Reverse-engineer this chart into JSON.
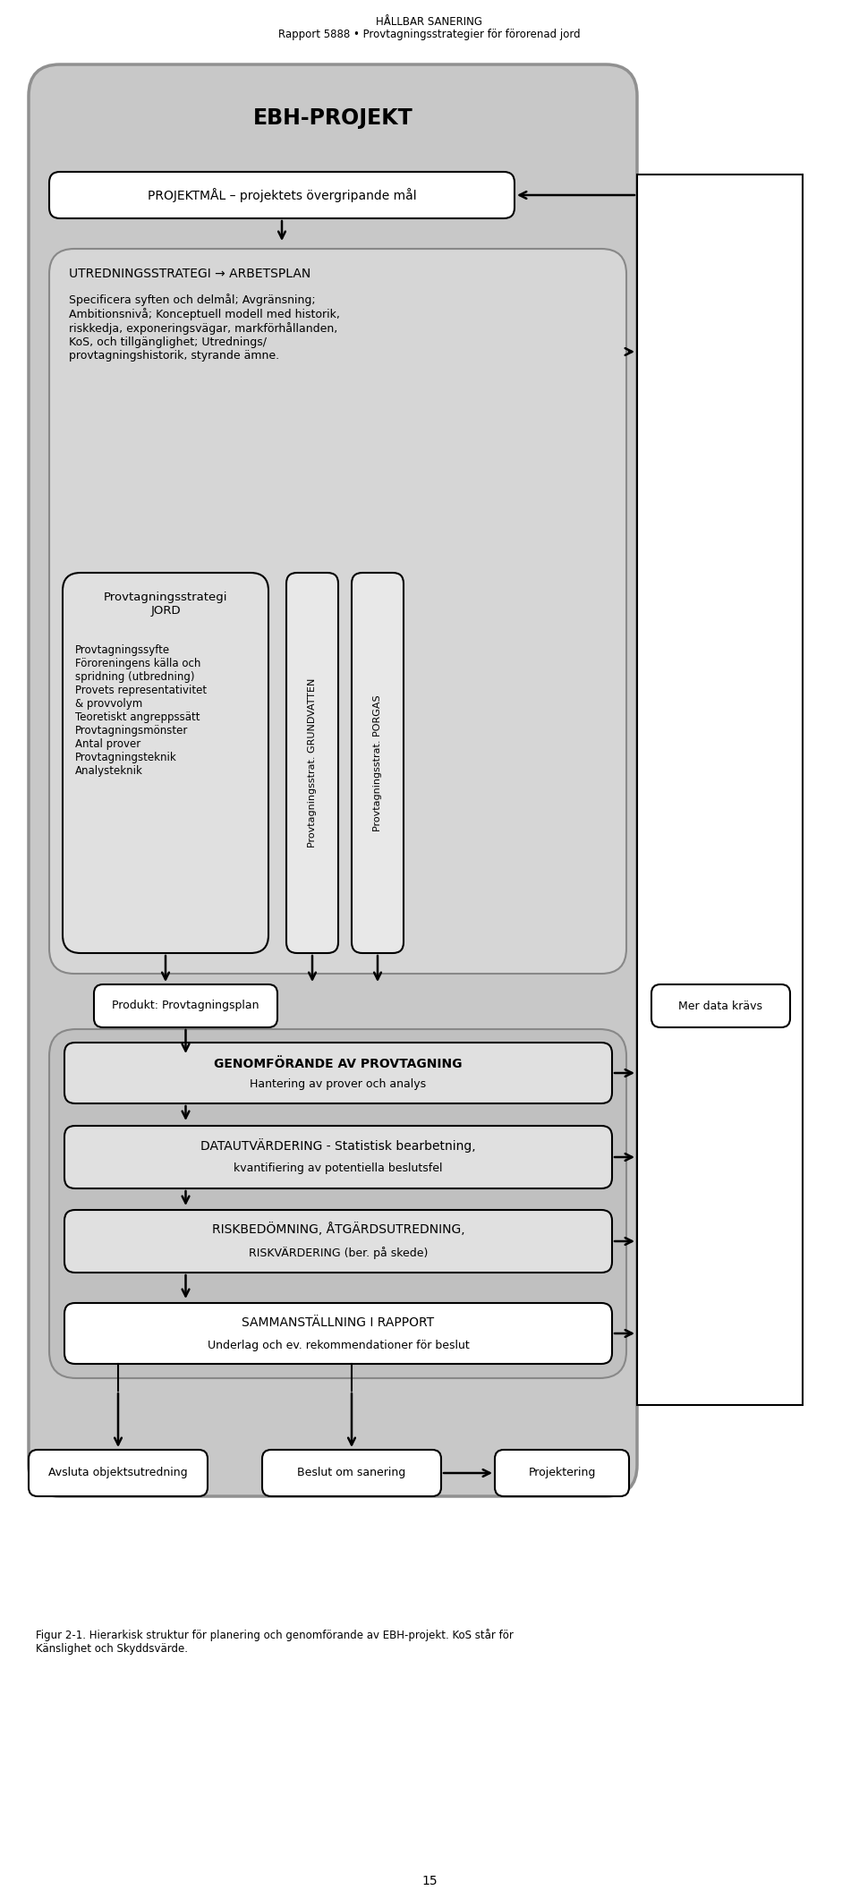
{
  "title_line1": "HÅLLBAR SANERING",
  "title_line2": "Rapport 5888 • Provtagningsstrategier för förorenad jord",
  "page_number": "15",
  "footer_line1": "Figur 2-1. Hierarkisk struktur för planering och genomförande av EBH-projekt. KoS står för",
  "footer_line2": "Känslighet och Skyddsvärde.",
  "main_title": "EBH-PROJEKT",
  "box1_text": "PROJEKTMÅL – projektets övergripande mål",
  "box2_title": "UTREDNINGSSTRATEGI → ARBETSPLAN",
  "box2_body": "Specificera syften och delmål; Avgränsning;\nAmbitionsnivå; Konceptuell modell med historik,\nriskkedja, exponeringsvägar, markförhållanden,\nKoS, och tillgänglighet; Utrednings/\nprovtagningshistorik, styrande ämne.",
  "jord_title": "Provtagningsstrategi\nJORD",
  "jord_body": "Provtagningssyfte\nFöroreningens källa och\nspridning (utbredning)\nProvets representativitet\n& provvolym\nTeoretiskt angreppssätt\nProvtagningsmönster\nAntal prover\nProvtagningsteknik\nAnalysteknik",
  "grundvatten_text": "Provtagningsstrat. GRUNDVATTEN",
  "porgas_text": "Provtagningsstrat. PORGAS",
  "produkt_text": "Produkt: Provtagningsplan",
  "mer_data_text": "Mer data krävs",
  "genomforande_title": "GENOMFÖRANDE AV PROVTAGNING",
  "genomforande_body": "Hantering av prover och analys",
  "datautvard_line1": "DATAUTVÄRDERING - Statistisk bearbetning,",
  "datautvard_line2": "kvantifiering av potentiella beslutsfel",
  "riskbed_line1": "RISKBEDÖMNING, ÅTGÄRDSUTREDNING,",
  "riskbed_line2": "RISKVÄRDERING (ber. på skede)",
  "sammanstalln_title": "SAMMANSTÄLLNING I RAPPORT",
  "sammanstalln_body": "Underlag och ev. rekommendationer för beslut",
  "avsluta_text": "Avsluta objektsutredning",
  "beslut_text": "Beslut om sanering",
  "projektering_text": "Projektering",
  "gray_light": "#c8c8c8",
  "gray_mid": "#b8b8b8",
  "gray_box": "#d0d0d0",
  "white": "#ffffff"
}
